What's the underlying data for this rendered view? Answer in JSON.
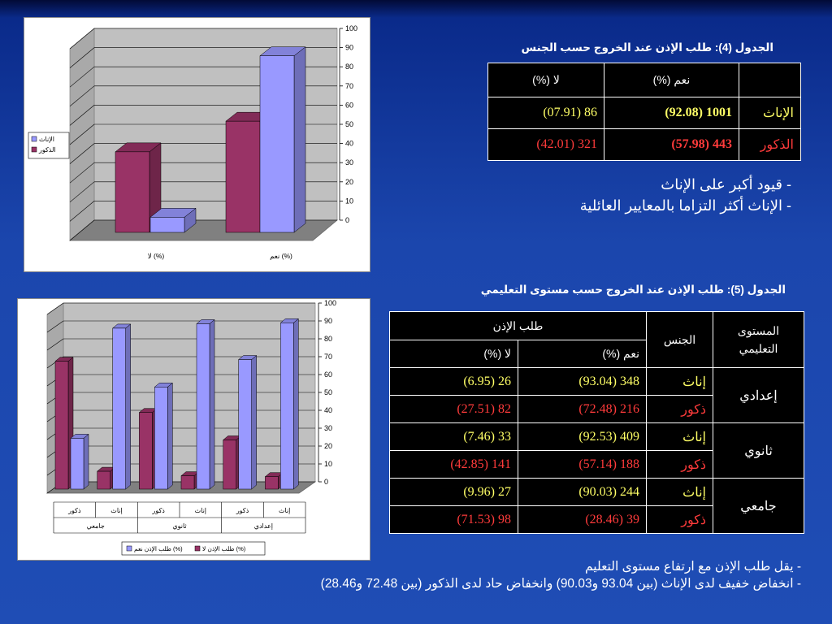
{
  "table4": {
    "title": "الجدول (4): طلب الإذن عند الخروج حسب الجنس",
    "headers": [
      "",
      "نعم (%)",
      "لا (%)"
    ],
    "rows": [
      {
        "label": "الإناث",
        "yes": "1001 (92.08)",
        "no": "86 (07.91)"
      },
      {
        "label": "الذكور",
        "yes": "443 (57.98)",
        "no": "321 (42.01)"
      }
    ]
  },
  "notes4": [
    "- قيود أكبر على الإناث",
    "- الإناث أكثر التزاما بالمعايير العائلية"
  ],
  "table5": {
    "title": "الجدول (5): طلب الإذن عند الخروج حسب مستوى التعليمي",
    "header_level": "المستوى التعليمي",
    "header_gender": "الجنس",
    "header_permission": "طلب الإذن",
    "header_yes": "نعم (%)",
    "header_no": "لا (%)",
    "groups": [
      {
        "level": "إعدادي",
        "female": {
          "gender": "إناث",
          "yes": "348 (93.04)",
          "no": "26 (6.95)"
        },
        "male": {
          "gender": "ذكور",
          "yes": "216 (72.48)",
          "no": "82 (27.51)"
        }
      },
      {
        "level": "ثانوي",
        "female": {
          "gender": "إناث",
          "yes": "409 (92.53)",
          "no": "33 (7.46)"
        },
        "male": {
          "gender": "ذكور",
          "yes": "188 (57.14)",
          "no": "141 (42.85)"
        }
      },
      {
        "level": "جامعي",
        "female": {
          "gender": "إناث",
          "yes": "244 (90.03)",
          "no": "27 (9.96)"
        },
        "male": {
          "gender": "ذكور",
          "yes": "39 (28.46)",
          "no": "98 (71.53)"
        }
      }
    ]
  },
  "notes5": [
    "- يقل طلب الإذن مع ارتفاع مستوى التعليم",
    "- انخفاض خفيف لدى الإناث (بين 93.04 و90.03) وانخفاض حاد لدى الذكور (بين 72.48 و28.46)"
  ],
  "colors": {
    "female": "#9999ff",
    "male": "#993366",
    "wall": "#c0c0c0"
  },
  "chart_data": [
    {
      "type": "bar",
      "title": "",
      "categories": [
        "لا (%)",
        "نعم (%)"
      ],
      "series": [
        {
          "name": "الإناث",
          "values": [
            7.91,
            92.08
          ]
        },
        {
          "name": "الذكور",
          "values": [
            42.01,
            57.98
          ]
        }
      ],
      "ylim": [
        0,
        100
      ],
      "yticks": [
        0,
        10,
        20,
        30,
        40,
        50,
        60,
        70,
        80,
        90,
        100
      ],
      "grid": true,
      "legend": "left",
      "three_d": true
    },
    {
      "type": "bar",
      "title": "",
      "groups": [
        "جامعي",
        "ثانوي",
        "إعدادي"
      ],
      "categories": [
        "ذكور",
        "إناث",
        "ذكور",
        "إناث",
        "ذكور",
        "إناث"
      ],
      "series": [
        {
          "name": "طلب الإذن لا (%)",
          "values": [
            71.53,
            9.96,
            42.85,
            7.46,
            27.51,
            6.95
          ]
        },
        {
          "name": "طلب الإذن نعم (%)",
          "values": [
            28.46,
            90.03,
            57.14,
            92.53,
            72.48,
            93.04
          ]
        }
      ],
      "ylim": [
        0,
        100
      ],
      "yticks": [
        0,
        10,
        20,
        30,
        40,
        50,
        60,
        70,
        80,
        90,
        100
      ],
      "grid": true,
      "legend": "bottom",
      "three_d": true
    }
  ]
}
